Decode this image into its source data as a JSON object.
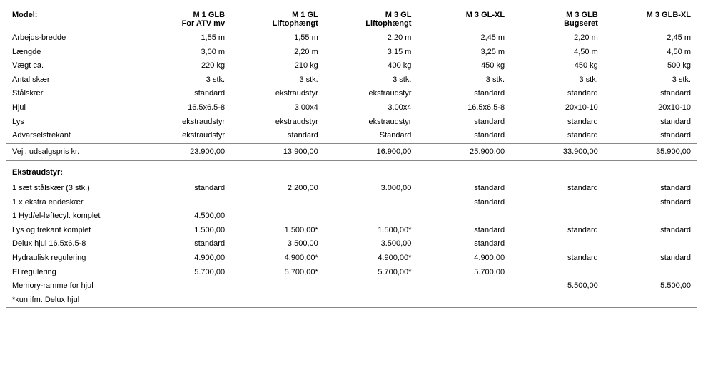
{
  "header": {
    "label": "Model:",
    "models": [
      {
        "name": "M 1 GLB",
        "sub": "For ATV mv"
      },
      {
        "name": "M 1 GL",
        "sub": "Liftophængt"
      },
      {
        "name": "M 3 GL",
        "sub": "Liftophængt"
      },
      {
        "name": "M 3 GL-XL",
        "sub": ""
      },
      {
        "name": "M 3 GLB",
        "sub": "Bugseret"
      },
      {
        "name": "M 3 GLB-XL",
        "sub": ""
      }
    ]
  },
  "specs": [
    {
      "label": "Arbejds-bredde",
      "v": [
        "1,55 m",
        "1,55 m",
        "2,20 m",
        "2,45 m",
        "2,20 m",
        "2,45 m"
      ]
    },
    {
      "label": "Længde",
      "v": [
        "3,00 m",
        "2,20 m",
        "3,15 m",
        "3,25 m",
        "4,50 m",
        "4,50 m"
      ]
    },
    {
      "label": "Vægt ca.",
      "v": [
        "220 kg",
        "210 kg",
        "400 kg",
        "450 kg",
        "450 kg",
        "500 kg"
      ]
    },
    {
      "label": "Antal skær",
      "v": [
        "3 stk.",
        "3 stk.",
        "3 stk.",
        "3 stk.",
        "3 stk.",
        "3 stk."
      ]
    },
    {
      "label": "Stålskær",
      "v": [
        "standard",
        "ekstraudstyr",
        "ekstraudstyr",
        "standard",
        "standard",
        "standard"
      ]
    },
    {
      "label": "Hjul",
      "v": [
        "16.5x6.5-8",
        "3.00x4",
        "3.00x4",
        "16.5x6.5-8",
        "20x10-10",
        "20x10-10"
      ]
    },
    {
      "label": "Lys",
      "v": [
        "ekstraudstyr",
        "ekstraudstyr",
        "ekstraudstyr",
        "standard",
        "standard",
        "standard"
      ]
    },
    {
      "label": "Advarselstrekant",
      "v": [
        "ekstraudstyr",
        "standard",
        "Standard",
        "standard",
        "standard",
        "standard"
      ]
    }
  ],
  "price": {
    "label": "Vejl. udsalgspris kr.",
    "v": [
      "23.900,00",
      "13.900,00",
      "16.900,00",
      "25.900,00",
      "33.900,00",
      "35.900,00"
    ]
  },
  "extras_header": "Ekstraudstyr:",
  "extras": [
    {
      "label": "1 sæt stålskær (3 stk.)",
      "v": [
        "standard",
        "2.200,00",
        "3.000,00",
        "standard",
        "standard",
        "standard"
      ]
    },
    {
      "label": "1 x ekstra endeskær",
      "v": [
        "",
        "",
        "",
        "standard",
        "",
        "standard"
      ]
    },
    {
      "label": "1 Hyd/el-løftecyl. komplet",
      "v": [
        "4.500,00",
        "",
        "",
        "",
        "",
        ""
      ]
    },
    {
      "label": "Lys og trekant komplet",
      "v": [
        "1.500,00",
        "1.500,00*",
        "1.500,00*",
        "standard",
        "standard",
        "standard"
      ]
    },
    {
      "label": "Delux hjul 16.5x6.5-8",
      "v": [
        "standard",
        "3.500,00",
        "3.500,00",
        "standard",
        "",
        ""
      ]
    },
    {
      "label": "Hydraulisk regulering",
      "v": [
        "4.900,00",
        "4.900,00*",
        "4.900,00*",
        "4.900,00",
        "standard",
        "standard"
      ]
    },
    {
      "label": "El regulering",
      "v": [
        "5.700,00",
        "5.700,00*",
        "5.700,00*",
        "5.700,00",
        "",
        ""
      ]
    },
    {
      "label": "Memory-ramme for hjul",
      "v": [
        "",
        "",
        "",
        "",
        "5.500,00",
        "5.500,00"
      ]
    },
    {
      "label": "*kun ifm. Delux hjul",
      "v": [
        "",
        "",
        "",
        "",
        "",
        ""
      ]
    }
  ]
}
